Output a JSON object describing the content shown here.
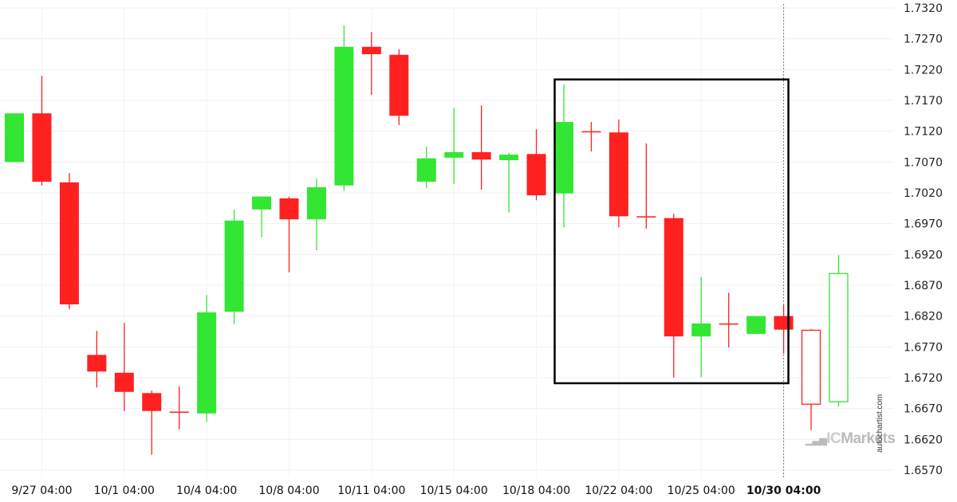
{
  "chart_data": {
    "type": "candlestick",
    "title": "",
    "ylim": [
      1.657,
      1.732
    ],
    "y_ticks": [
      "1.7320",
      "1.7270",
      "1.7220",
      "1.7170",
      "1.7120",
      "1.7070",
      "1.7020",
      "1.6970",
      "1.6920",
      "1.6870",
      "1.6820",
      "1.6770",
      "1.6720",
      "1.6670",
      "1.6620",
      "1.6570"
    ],
    "x_ticks": [
      {
        "index": 1,
        "label": "9/27 04:00"
      },
      {
        "index": 4,
        "label": "10/1 04:00"
      },
      {
        "index": 7,
        "label": "10/4 04:00"
      },
      {
        "index": 10,
        "label": "10/8 04:00"
      },
      {
        "index": 13,
        "label": "10/11 04:00"
      },
      {
        "index": 16,
        "label": "10/15 04:00"
      },
      {
        "index": 19,
        "label": "10/18 04:00"
      },
      {
        "index": 22,
        "label": "10/22 04:00"
      },
      {
        "index": 25,
        "label": "10/25 04:00"
      },
      {
        "index": 28,
        "label": "10/30 04:00",
        "bold": true
      }
    ],
    "grid": true,
    "colors": {
      "up": "#33e633",
      "down": "#ff2020",
      "box": "#000000"
    },
    "candles": [
      {
        "o": 1.707,
        "h": 1.7149,
        "l": 1.707,
        "c": 1.7149
      },
      {
        "o": 1.7149,
        "h": 1.721,
        "l": 1.7032,
        "c": 1.7038
      },
      {
        "o": 1.7037,
        "h": 1.7052,
        "l": 1.6831,
        "c": 1.6839
      },
      {
        "o": 1.6757,
        "h": 1.6796,
        "l": 1.6704,
        "c": 1.673
      },
      {
        "o": 1.6728,
        "h": 1.6809,
        "l": 1.6666,
        "c": 1.6697
      },
      {
        "o": 1.6695,
        "h": 1.6699,
        "l": 1.6595,
        "c": 1.6666
      },
      {
        "o": 1.6665,
        "h": 1.6706,
        "l": 1.6636,
        "c": 1.6663
      },
      {
        "o": 1.6662,
        "h": 1.6854,
        "l": 1.6648,
        "c": 1.6826
      },
      {
        "o": 1.6827,
        "h": 1.6993,
        "l": 1.6807,
        "c": 1.6975
      },
      {
        "o": 1.6993,
        "h": 1.7014,
        "l": 1.6948,
        "c": 1.7014
      },
      {
        "o": 1.7011,
        "h": 1.7014,
        "l": 1.6891,
        "c": 1.6977
      },
      {
        "o": 1.6977,
        "h": 1.7043,
        "l": 1.6927,
        "c": 1.7029
      },
      {
        "o": 1.7032,
        "h": 1.7292,
        "l": 1.7023,
        "c": 1.7257
      },
      {
        "o": 1.7257,
        "h": 1.7281,
        "l": 1.7179,
        "c": 1.7245
      },
      {
        "o": 1.7244,
        "h": 1.7253,
        "l": 1.713,
        "c": 1.7145
      },
      {
        "o": 1.7038,
        "h": 1.7095,
        "l": 1.7028,
        "c": 1.7076
      },
      {
        "o": 1.7077,
        "h": 1.7158,
        "l": 1.7034,
        "c": 1.7086
      },
      {
        "o": 1.7086,
        "h": 1.7162,
        "l": 1.7025,
        "c": 1.7074
      },
      {
        "o": 1.7073,
        "h": 1.7085,
        "l": 1.6988,
        "c": 1.7082
      },
      {
        "o": 1.7083,
        "h": 1.7123,
        "l": 1.7008,
        "c": 1.7016
      },
      {
        "o": 1.7019,
        "h": 1.7196,
        "l": 1.6964,
        "c": 1.7135
      },
      {
        "o": 1.712,
        "h": 1.7135,
        "l": 1.7087,
        "c": 1.7119
      },
      {
        "o": 1.7118,
        "h": 1.7139,
        "l": 1.6964,
        "c": 1.6982
      },
      {
        "o": 1.6982,
        "h": 1.71,
        "l": 1.6962,
        "c": 1.698
      },
      {
        "o": 1.6979,
        "h": 1.6986,
        "l": 1.672,
        "c": 1.6787
      },
      {
        "o": 1.6787,
        "h": 1.6883,
        "l": 1.6721,
        "c": 1.6808
      },
      {
        "o": 1.6808,
        "h": 1.6858,
        "l": 1.6769,
        "c": 1.6807
      },
      {
        "o": 1.6791,
        "h": 1.682,
        "l": 1.6791,
        "c": 1.682
      },
      {
        "o": 1.682,
        "h": 1.6838,
        "l": 1.6759,
        "c": 1.6798
      },
      {
        "o": 1.6797,
        "h": 1.6799,
        "l": 1.6635,
        "c": 1.6677,
        "hollow": true
      },
      {
        "o": 1.6681,
        "h": 1.6919,
        "l": 1.6673,
        "c": 1.6889,
        "hollow": true
      }
    ],
    "pattern_box": {
      "from_index": 20,
      "to_index": 28,
      "high": 1.7204,
      "low": 1.6711
    },
    "marker_line_index": 28
  },
  "branding": {
    "logo_text_ic": "IC",
    "logo_text_markets": "Markets",
    "watermark": "autochartist.com"
  }
}
